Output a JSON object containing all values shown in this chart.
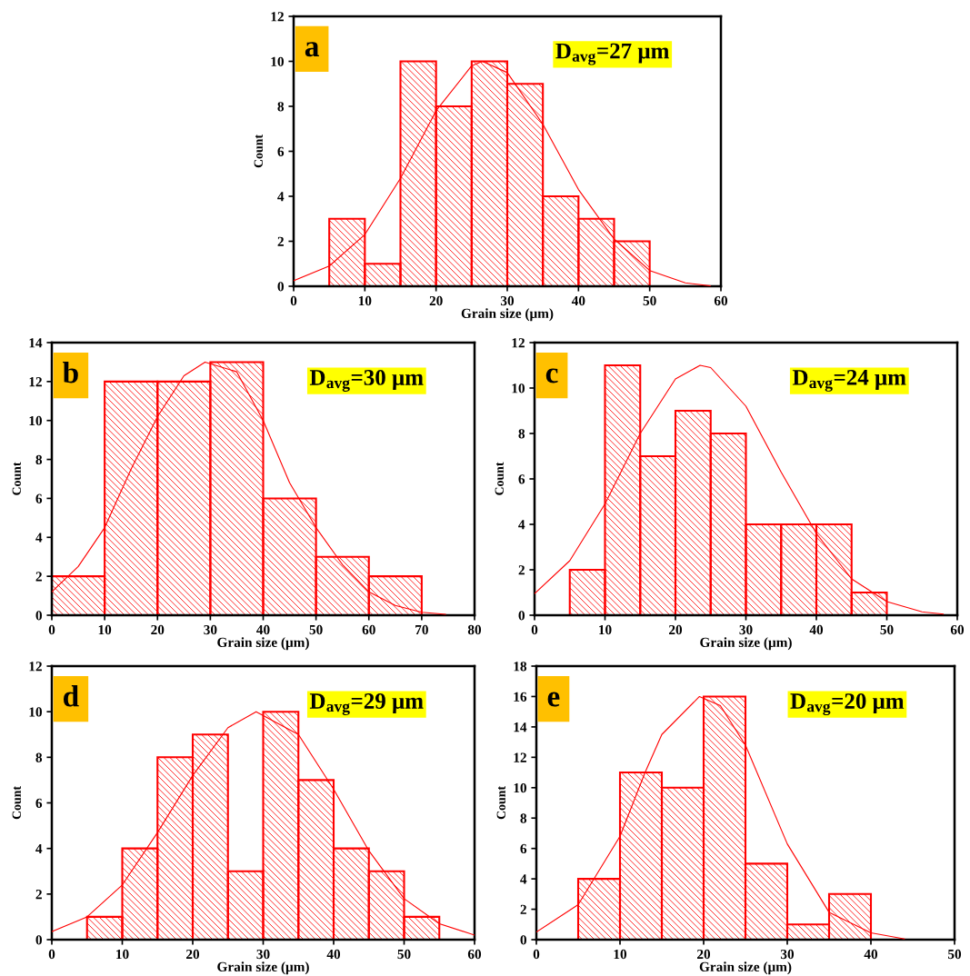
{
  "chart_data": [
    {
      "type": "histogram",
      "xlabel": "Grain size (μm)",
      "ylabel": "Count",
      "annotations": [
        "a",
        "D$_{avg}$=27 μm"
      ],
      "bins": [
        5,
        10,
        15,
        20,
        25,
        30,
        35,
        40,
        45,
        50
      ],
      "xlim": [
        0,
        60
      ],
      "xticks": [
        0,
        10,
        20,
        30,
        40,
        50,
        60
      ],
      "ylim": [
        0,
        12
      ],
      "yticks": [
        0,
        2,
        4,
        6,
        8,
        10,
        12
      ],
      "grid": false,
      "series": [
        {
          "color": "#ff0000",
          "values": [
            3,
            1,
            10,
            8,
            10,
            9,
            4,
            3,
            2
          ]
        },
        {
          "type": "line",
          "color": "#ff0000",
          "x": [
            0,
            5,
            10,
            15,
            20,
            25,
            26.5,
            30,
            35,
            40,
            45,
            50,
            55,
            58.5
          ],
          "values": [
            0.25,
            0.9,
            2.3,
            4.8,
            7.8,
            9.8,
            10,
            9.5,
            7.2,
            4.3,
            2.1,
            0.7,
            0.15,
            0.02
          ]
        }
      ]
    },
    {
      "type": "histogram",
      "xlabel": "Grain size (μm)",
      "ylabel": "Count",
      "annotations": [
        "b",
        "D$_{avg}$=30 μm"
      ],
      "bins": [
        0,
        10,
        20,
        30,
        40,
        50,
        60,
        70
      ],
      "xlim": [
        0,
        80
      ],
      "xticks": [
        0,
        10,
        20,
        30,
        40,
        50,
        60,
        70,
        80
      ],
      "ylim": [
        0,
        14
      ],
      "yticks": [
        0,
        2,
        4,
        6,
        8,
        10,
        12,
        14
      ],
      "grid": false,
      "series": [
        {
          "color": "#ff0000",
          "values": [
            2,
            12,
            12,
            13,
            6,
            3,
            2
          ]
        },
        {
          "type": "line",
          "color": "#ff0000",
          "x": [
            0,
            5,
            10,
            15,
            20,
            25,
            29,
            35,
            40,
            45,
            50,
            55,
            60,
            65,
            70,
            74.5
          ],
          "values": [
            1.2,
            2.5,
            4.5,
            7.5,
            10.2,
            12.3,
            13,
            12.5,
            10,
            6.8,
            4.5,
            2.6,
            1.2,
            0.5,
            0.15,
            0.05
          ]
        }
      ]
    },
    {
      "type": "histogram",
      "xlabel": "Grain size (μm)",
      "ylabel": "Count",
      "annotations": [
        "c",
        "D$_{avg}$=24 μm"
      ],
      "bins": [
        5,
        10,
        15,
        20,
        25,
        30,
        35,
        40,
        45,
        50
      ],
      "xlim": [
        0,
        60
      ],
      "xticks": [
        0,
        10,
        20,
        30,
        40,
        50,
        60
      ],
      "ylim": [
        0,
        12
      ],
      "yticks": [
        0,
        2,
        4,
        6,
        8,
        10,
        12
      ],
      "grid": false,
      "series": [
        {
          "color": "#ff0000",
          "values": [
            2,
            11,
            7,
            9,
            8,
            4,
            4,
            4,
            1
          ]
        },
        {
          "type": "line",
          "color": "#ff0000",
          "x": [
            0,
            5,
            10,
            15,
            20,
            23.5,
            25,
            30,
            35,
            40,
            45,
            50,
            55,
            58
          ],
          "values": [
            0.95,
            2.4,
            4.9,
            8.0,
            10.4,
            11,
            10.9,
            9.2,
            6.3,
            3.6,
            1.6,
            0.6,
            0.15,
            0.05
          ]
        }
      ]
    },
    {
      "type": "histogram",
      "xlabel": "Grain size (μm)",
      "ylabel": "Count",
      "annotations": [
        "d",
        "D$_{avg}$=29 μm"
      ],
      "bins": [
        5,
        10,
        15,
        20,
        25,
        30,
        35,
        40,
        45,
        50,
        55
      ],
      "xlim": [
        0,
        60
      ],
      "xticks": [
        0,
        10,
        20,
        30,
        40,
        50,
        60
      ],
      "ylim": [
        0,
        12
      ],
      "yticks": [
        0,
        2,
        4,
        6,
        8,
        10,
        12
      ],
      "grid": false,
      "series": [
        {
          "color": "#ff0000",
          "values": [
            1,
            4,
            8,
            9,
            3,
            10,
            7,
            4,
            3,
            1
          ]
        },
        {
          "type": "line",
          "color": "#ff0000",
          "x": [
            0,
            5,
            10,
            15,
            20,
            25,
            29,
            35,
            40,
            45,
            50,
            55,
            60
          ],
          "values": [
            0.35,
            1.0,
            2.4,
            4.7,
            7.2,
            9.3,
            10,
            9.0,
            6.6,
            3.9,
            1.8,
            0.7,
            0.2
          ]
        }
      ]
    },
    {
      "type": "histogram",
      "xlabel": "Grain size (μm)",
      "ylabel": "Count",
      "annotations": [
        "e",
        "D$_{avg}$=20 μm"
      ],
      "bins": [
        5,
        10,
        15,
        20,
        25,
        30,
        35,
        40
      ],
      "xlim": [
        0,
        50
      ],
      "xticks": [
        0,
        10,
        20,
        30,
        40,
        50
      ],
      "ylim": [
        0,
        18
      ],
      "yticks": [
        0,
        2,
        4,
        6,
        8,
        10,
        12,
        14,
        16,
        18
      ],
      "grid": false,
      "series": [
        {
          "color": "#ff0000",
          "values": [
            4,
            11,
            10,
            16,
            5,
            1,
            3
          ]
        },
        {
          "type": "line",
          "color": "#ff0000",
          "x": [
            0,
            5,
            10,
            13,
            15,
            19.5,
            22,
            25,
            30,
            35,
            40,
            44
          ],
          "values": [
            0.5,
            2.3,
            6.8,
            11,
            13.5,
            16,
            15.4,
            12.8,
            6.3,
            1.8,
            0.45,
            0.05
          ]
        }
      ]
    }
  ]
}
